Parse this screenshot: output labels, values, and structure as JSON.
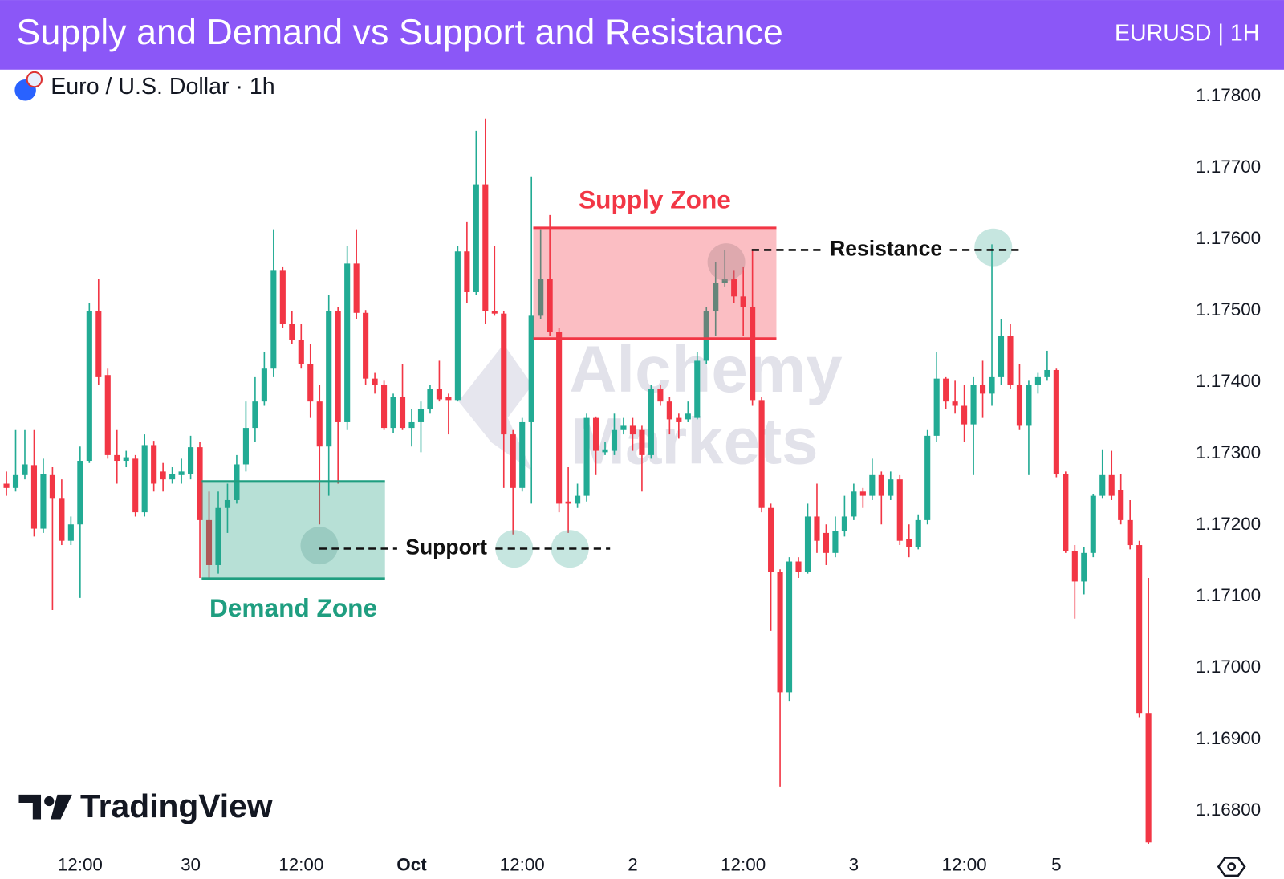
{
  "chart_data": {
    "type": "candlestick",
    "title": "Supply and Demand vs Support and Resistance",
    "subtitle": "EURUSD | 1H",
    "symbol": "Euro / U.S. Dollar · 1h",
    "watermark": [
      "Alchemy",
      "Markets"
    ],
    "logo": "TradingView",
    "up_color": "#22ab94",
    "down_color": "#f23645",
    "xlim": [
      -0.7,
      126
    ],
    "xticks": [
      {
        "value": 8,
        "label": "12:00"
      },
      {
        "value": 20,
        "label": "30"
      },
      {
        "value": 32,
        "label": "12:00"
      },
      {
        "value": 44,
        "label": "Oct"
      },
      {
        "value": 56,
        "label": "12:00"
      },
      {
        "value": 68,
        "label": "2"
      },
      {
        "value": 80,
        "label": "12:00"
      },
      {
        "value": 92,
        "label": "3"
      },
      {
        "value": 104,
        "label": "12:00"
      },
      {
        "value": 114,
        "label": "5"
      }
    ],
    "ylim": [
      1.16754,
      1.17834
    ],
    "yticks": [
      {
        "value": 1.178,
        "label": "1.17800"
      },
      {
        "value": 1.177,
        "label": "1.17700"
      },
      {
        "value": 1.176,
        "label": "1.17600"
      },
      {
        "value": 1.175,
        "label": "1.17500"
      },
      {
        "value": 1.174,
        "label": "1.17400"
      },
      {
        "value": 1.173,
        "label": "1.17300"
      },
      {
        "value": 1.172,
        "label": "1.17200"
      },
      {
        "value": 1.171,
        "label": "1.17100"
      },
      {
        "value": 1.17,
        "label": "1.17000"
      },
      {
        "value": 1.169,
        "label": "1.16900"
      },
      {
        "value": 1.168,
        "label": "1.16800"
      }
    ],
    "zones": [
      {
        "label": "Supply Zone",
        "color": "#f23645",
        "top": 1.17616,
        "bottom": 1.17461,
        "start": 57.2,
        "end": 83.6
      },
      {
        "label": "Demand Zone",
        "color": "#1f9e80",
        "top": 1.17261,
        "bottom": 1.17125,
        "start": 21.2,
        "end": 41.1
      }
    ],
    "levels": [
      {
        "label": "Support",
        "value": 1.17167
      },
      {
        "label": "Resistance",
        "value": 1.17585
      }
    ],
    "open": [
      1.17258,
      1.17252,
      1.1727,
      1.17284,
      1.17195,
      1.1727,
      1.17238,
      1.17178,
      1.17201,
      1.1729,
      1.17499,
      1.1741,
      1.17298,
      1.1729,
      1.17293,
      1.17218,
      1.17312,
      1.17275,
      1.17264,
      1.1727,
      1.17272,
      1.17309,
      1.17207,
      1.17144,
      1.17224,
      1.17235,
      1.17285,
      1.17336,
      1.17373,
      1.17419,
      1.17557,
      1.17482,
      1.17459,
      1.17425,
      1.17373,
      1.1731,
      1.17499,
      1.17344,
      1.17566,
      1.17497,
      1.17405,
      1.17396,
      1.17336,
      1.17379,
      1.17336,
      1.17344,
      1.17362,
      1.1739,
      1.17379,
      1.17375,
      1.17583,
      1.17526,
      1.17677,
      1.17499,
      1.17496,
      1.17327,
      1.17252,
      1.17344,
      1.17493,
      1.17545,
      1.1747,
      1.17233,
      1.1723,
      1.17241,
      1.1735,
      1.17302,
      1.17304,
      1.17333,
      1.17339,
      1.17333,
      1.17298,
      1.1739,
      1.17373,
      1.1735,
      1.17348,
      1.1735,
      1.1743,
      1.17499,
      1.17539,
      1.17545,
      1.1752,
      1.17505,
      1.17375,
      1.17224,
      1.17134,
      1.16966,
      1.17149,
      1.17134,
      1.17212,
      1.17189,
      1.17161,
      1.17192,
      1.17212,
      1.17247,
      1.17241,
      1.1727,
      1.17241,
      1.17264,
      1.1718,
      1.17169,
      1.17207,
      1.17325,
      1.17405,
      1.17373,
      1.17367,
      1.17341,
      1.17396,
      1.17384,
      1.17407,
      1.17465,
      1.17396,
      1.17339,
      1.17396,
      1.17407,
      1.17417,
      1.17272,
      1.17164,
      1.17121,
      1.17161,
      1.17241,
      1.1727,
      1.17249,
      1.17207,
      1.17172,
      1.16937
    ],
    "high": [
      1.17275,
      1.17333,
      1.17333,
      1.17333,
      1.17293,
      1.17281,
      1.17264,
      1.17212,
      1.1731,
      1.17511,
      1.17545,
      1.17419,
      1.17333,
      1.17304,
      1.17298,
      1.17327,
      1.17318,
      1.17287,
      1.17281,
      1.17293,
      1.17325,
      1.17316,
      1.17247,
      1.17247,
      1.17258,
      1.17298,
      1.17373,
      1.17407,
      1.17442,
      1.17614,
      1.17562,
      1.17499,
      1.17482,
      1.17453,
      1.17396,
      1.17522,
      1.17505,
      1.17591,
      1.17614,
      1.17501,
      1.17413,
      1.17402,
      1.17384,
      1.17425,
      1.17362,
      1.17373,
      1.17396,
      1.1743,
      1.17384,
      1.17591,
      1.17625,
      1.17752,
      1.17769,
      1.17591,
      1.17499,
      1.17333,
      1.1735,
      1.17688,
      1.17614,
      1.17634,
      1.17476,
      1.17281,
      1.17258,
      1.17356,
      1.17352,
      1.17316,
      1.17356,
      1.1735,
      1.1735,
      1.17339,
      1.17396,
      1.17396,
      1.17379,
      1.17356,
      1.17373,
      1.17442,
      1.17505,
      1.17568,
      1.17585,
      1.17557,
      1.17562,
      1.17585,
      1.17379,
      1.1723,
      1.17138,
      1.17155,
      1.17155,
      1.1723,
      1.17258,
      1.17201,
      1.17212,
      1.17241,
      1.17258,
      1.17252,
      1.17293,
      1.17275,
      1.17275,
      1.1727,
      1.17201,
      1.17215,
      1.17333,
      1.17442,
      1.17407,
      1.17402,
      1.17396,
      1.17407,
      1.1743,
      1.17593,
      1.17488,
      1.17482,
      1.17425,
      1.17402,
      1.17413,
      1.17444,
      1.17419,
      1.17275,
      1.17172,
      1.17169,
      1.17244,
      1.17306,
      1.17304,
      1.17272,
      1.17235,
      1.17178,
      1.17126
    ],
    "low": [
      1.17241,
      1.17247,
      1.17264,
      1.17184,
      1.17189,
      1.17081,
      1.17172,
      1.17172,
      1.17098,
      1.17287,
      1.17396,
      1.17293,
      1.17258,
      1.17281,
      1.17212,
      1.17212,
      1.17247,
      1.17247,
      1.17258,
      1.17258,
      1.17264,
      1.17126,
      1.17126,
      1.17132,
      1.17189,
      1.1723,
      1.17275,
      1.17316,
      1.17367,
      1.17407,
      1.17476,
      1.17453,
      1.17419,
      1.1735,
      1.17201,
      1.17241,
      1.17258,
      1.17333,
      1.17488,
      1.17396,
      1.17384,
      1.17333,
      1.17329,
      1.17333,
      1.1731,
      1.17302,
      1.17356,
      1.17373,
      1.17327,
      1.17373,
      1.17511,
      1.17522,
      1.17482,
      1.17493,
      1.17252,
      1.17187,
      1.17247,
      1.1723,
      1.17488,
      1.17465,
      1.17218,
      1.17189,
      1.17224,
      1.17233,
      1.1727,
      1.17298,
      1.17298,
      1.17327,
      1.17304,
      1.17247,
      1.17293,
      1.17367,
      1.17327,
      1.17321,
      1.17344,
      1.17348,
      1.17425,
      1.17465,
      1.17534,
      1.17511,
      1.17465,
      1.17367,
      1.17218,
      1.17052,
      1.16834,
      1.16954,
      1.17126,
      1.17132,
      1.17161,
      1.17144,
      1.17155,
      1.17184,
      1.17207,
      1.17224,
      1.17235,
      1.17201,
      1.17235,
      1.17172,
      1.17155,
      1.17166,
      1.17201,
      1.17316,
      1.17362,
      1.17356,
      1.17316,
      1.1727,
      1.1735,
      1.17367,
      1.17396,
      1.1739,
      1.17333,
      1.1727,
      1.17384,
      1.17402,
      1.17267,
      1.17161,
      1.17069,
      1.17103,
      1.17155,
      1.17238,
      1.17235,
      1.17201,
      1.17166,
      1.16931,
      1.16754
    ],
    "close": [
      1.17252,
      1.1727,
      1.17285,
      1.17195,
      1.17272,
      1.17238,
      1.17178,
      1.17201,
      1.1729,
      1.17499,
      1.17407,
      1.17298,
      1.1729,
      1.17295,
      1.17218,
      1.17312,
      1.17258,
      1.17264,
      1.17272,
      1.17275,
      1.17309,
      1.17207,
      1.17144,
      1.17224,
      1.17235,
      1.17285,
      1.17336,
      1.17373,
      1.17419,
      1.17557,
      1.17482,
      1.17459,
      1.17425,
      1.17373,
      1.1731,
      1.17499,
      1.17344,
      1.17566,
      1.17497,
      1.17405,
      1.17396,
      1.17336,
      1.17379,
      1.17336,
      1.17344,
      1.17362,
      1.1739,
      1.17376,
      1.17375,
      1.17583,
      1.17526,
      1.17677,
      1.17499,
      1.17496,
      1.17327,
      1.17252,
      1.17344,
      1.17493,
      1.17545,
      1.1747,
      1.1723,
      1.1723,
      1.17241,
      1.1735,
      1.17304,
      1.17306,
      1.17333,
      1.17339,
      1.17327,
      1.17298,
      1.1739,
      1.17373,
      1.17348,
      1.17344,
      1.17356,
      1.1743,
      1.17499,
      1.17539,
      1.17545,
      1.1752,
      1.17505,
      1.17375,
      1.17224,
      1.17134,
      1.16966,
      1.17149,
      1.17134,
      1.17212,
      1.17178,
      1.17161,
      1.17192,
      1.17212,
      1.17247,
      1.17241,
      1.1727,
      1.17241,
      1.17264,
      1.17178,
      1.17169,
      1.17207,
      1.17325,
      1.17405,
      1.17373,
      1.17367,
      1.17341,
      1.17396,
      1.17384,
      1.17407,
      1.17465,
      1.17396,
      1.17339,
      1.17396,
      1.17407,
      1.17417,
      1.17272,
      1.17164,
      1.17121,
      1.17161,
      1.17241,
      1.1727,
      1.17241,
      1.17207,
      1.17172,
      1.16937,
      1.16756
    ]
  }
}
